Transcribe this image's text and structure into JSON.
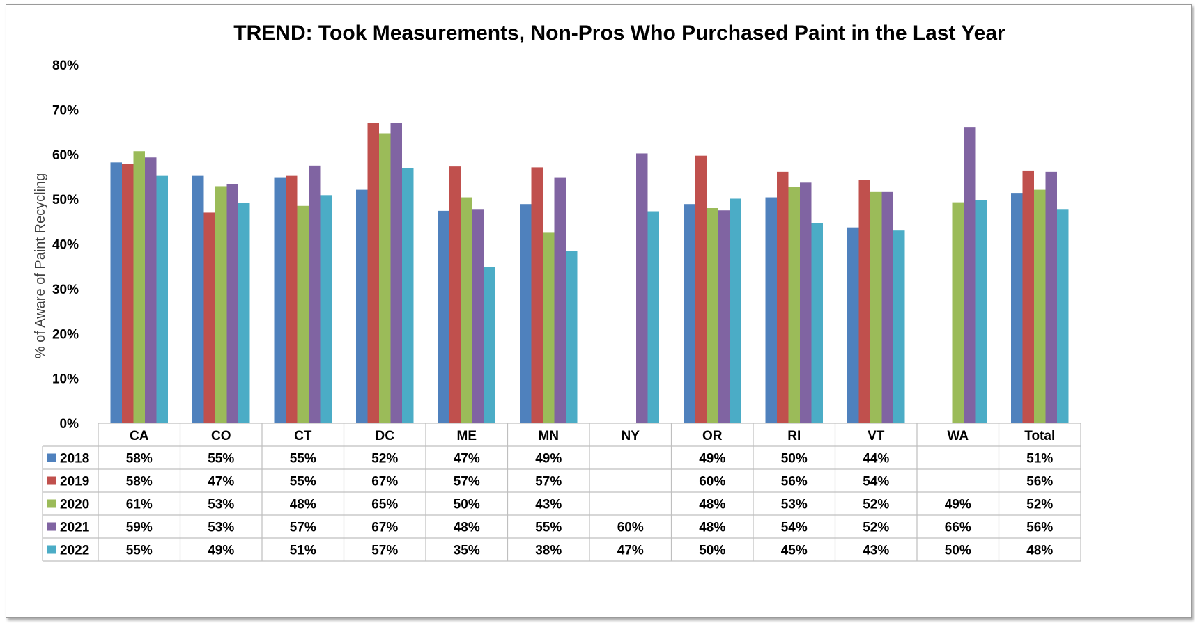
{
  "chart_data": {
    "type": "bar",
    "title": "TREND: Took Measurements, Non-Pros Who Purchased Paint in the Last Year",
    "ylabel": "% of Aware of Paint Recycling",
    "xlabel": "",
    "ylim": [
      0,
      80
    ],
    "yticks": [
      "0%",
      "10%",
      "20%",
      "30%",
      "40%",
      "50%",
      "60%",
      "70%",
      "80%"
    ],
    "grid": false,
    "legend": "data-table",
    "categories": [
      "CA",
      "CO",
      "CT",
      "DC",
      "ME",
      "MN",
      "NY",
      "OR",
      "RI",
      "VT",
      "WA",
      "Total"
    ],
    "series": [
      {
        "name": "2018",
        "color": "#4f81bd",
        "values": [
          58.2,
          55.2,
          54.9,
          52.1,
          47.4,
          48.9,
          null,
          48.9,
          50.4,
          43.7,
          null,
          51.4
        ],
        "labels": [
          "58%",
          "55%",
          "55%",
          "52%",
          "47%",
          "49%",
          "",
          "49%",
          "50%",
          "44%",
          "",
          "51%"
        ]
      },
      {
        "name": "2019",
        "color": "#c0504d",
        "values": [
          57.8,
          47.0,
          55.2,
          67.1,
          57.3,
          57.1,
          null,
          59.7,
          56.1,
          54.3,
          null,
          56.4
        ],
        "labels": [
          "58%",
          "47%",
          "55%",
          "67%",
          "57%",
          "57%",
          "",
          "60%",
          "56%",
          "54%",
          "",
          "56%"
        ]
      },
      {
        "name": "2020",
        "color": "#9bbb59",
        "values": [
          60.7,
          52.9,
          48.5,
          64.7,
          50.4,
          42.5,
          null,
          48.0,
          52.8,
          51.6,
          49.3,
          52.1
        ],
        "labels": [
          "61%",
          "53%",
          "48%",
          "65%",
          "50%",
          "43%",
          "",
          "48%",
          "53%",
          "52%",
          "49%",
          "52%"
        ]
      },
      {
        "name": "2021",
        "color": "#8064a2",
        "values": [
          59.3,
          53.3,
          57.5,
          67.1,
          47.8,
          54.9,
          60.2,
          47.5,
          53.7,
          51.6,
          66.0,
          56.1
        ],
        "labels": [
          "59%",
          "53%",
          "57%",
          "67%",
          "48%",
          "55%",
          "60%",
          "48%",
          "54%",
          "52%",
          "66%",
          "56%"
        ]
      },
      {
        "name": "2022",
        "color": "#4bacc6",
        "values": [
          55.2,
          49.1,
          50.9,
          56.9,
          34.9,
          38.4,
          47.3,
          50.1,
          44.6,
          43.0,
          49.8,
          47.8
        ],
        "labels": [
          "55%",
          "49%",
          "51%",
          "57%",
          "35%",
          "38%",
          "47%",
          "50%",
          "45%",
          "43%",
          "50%",
          "48%"
        ]
      }
    ]
  }
}
